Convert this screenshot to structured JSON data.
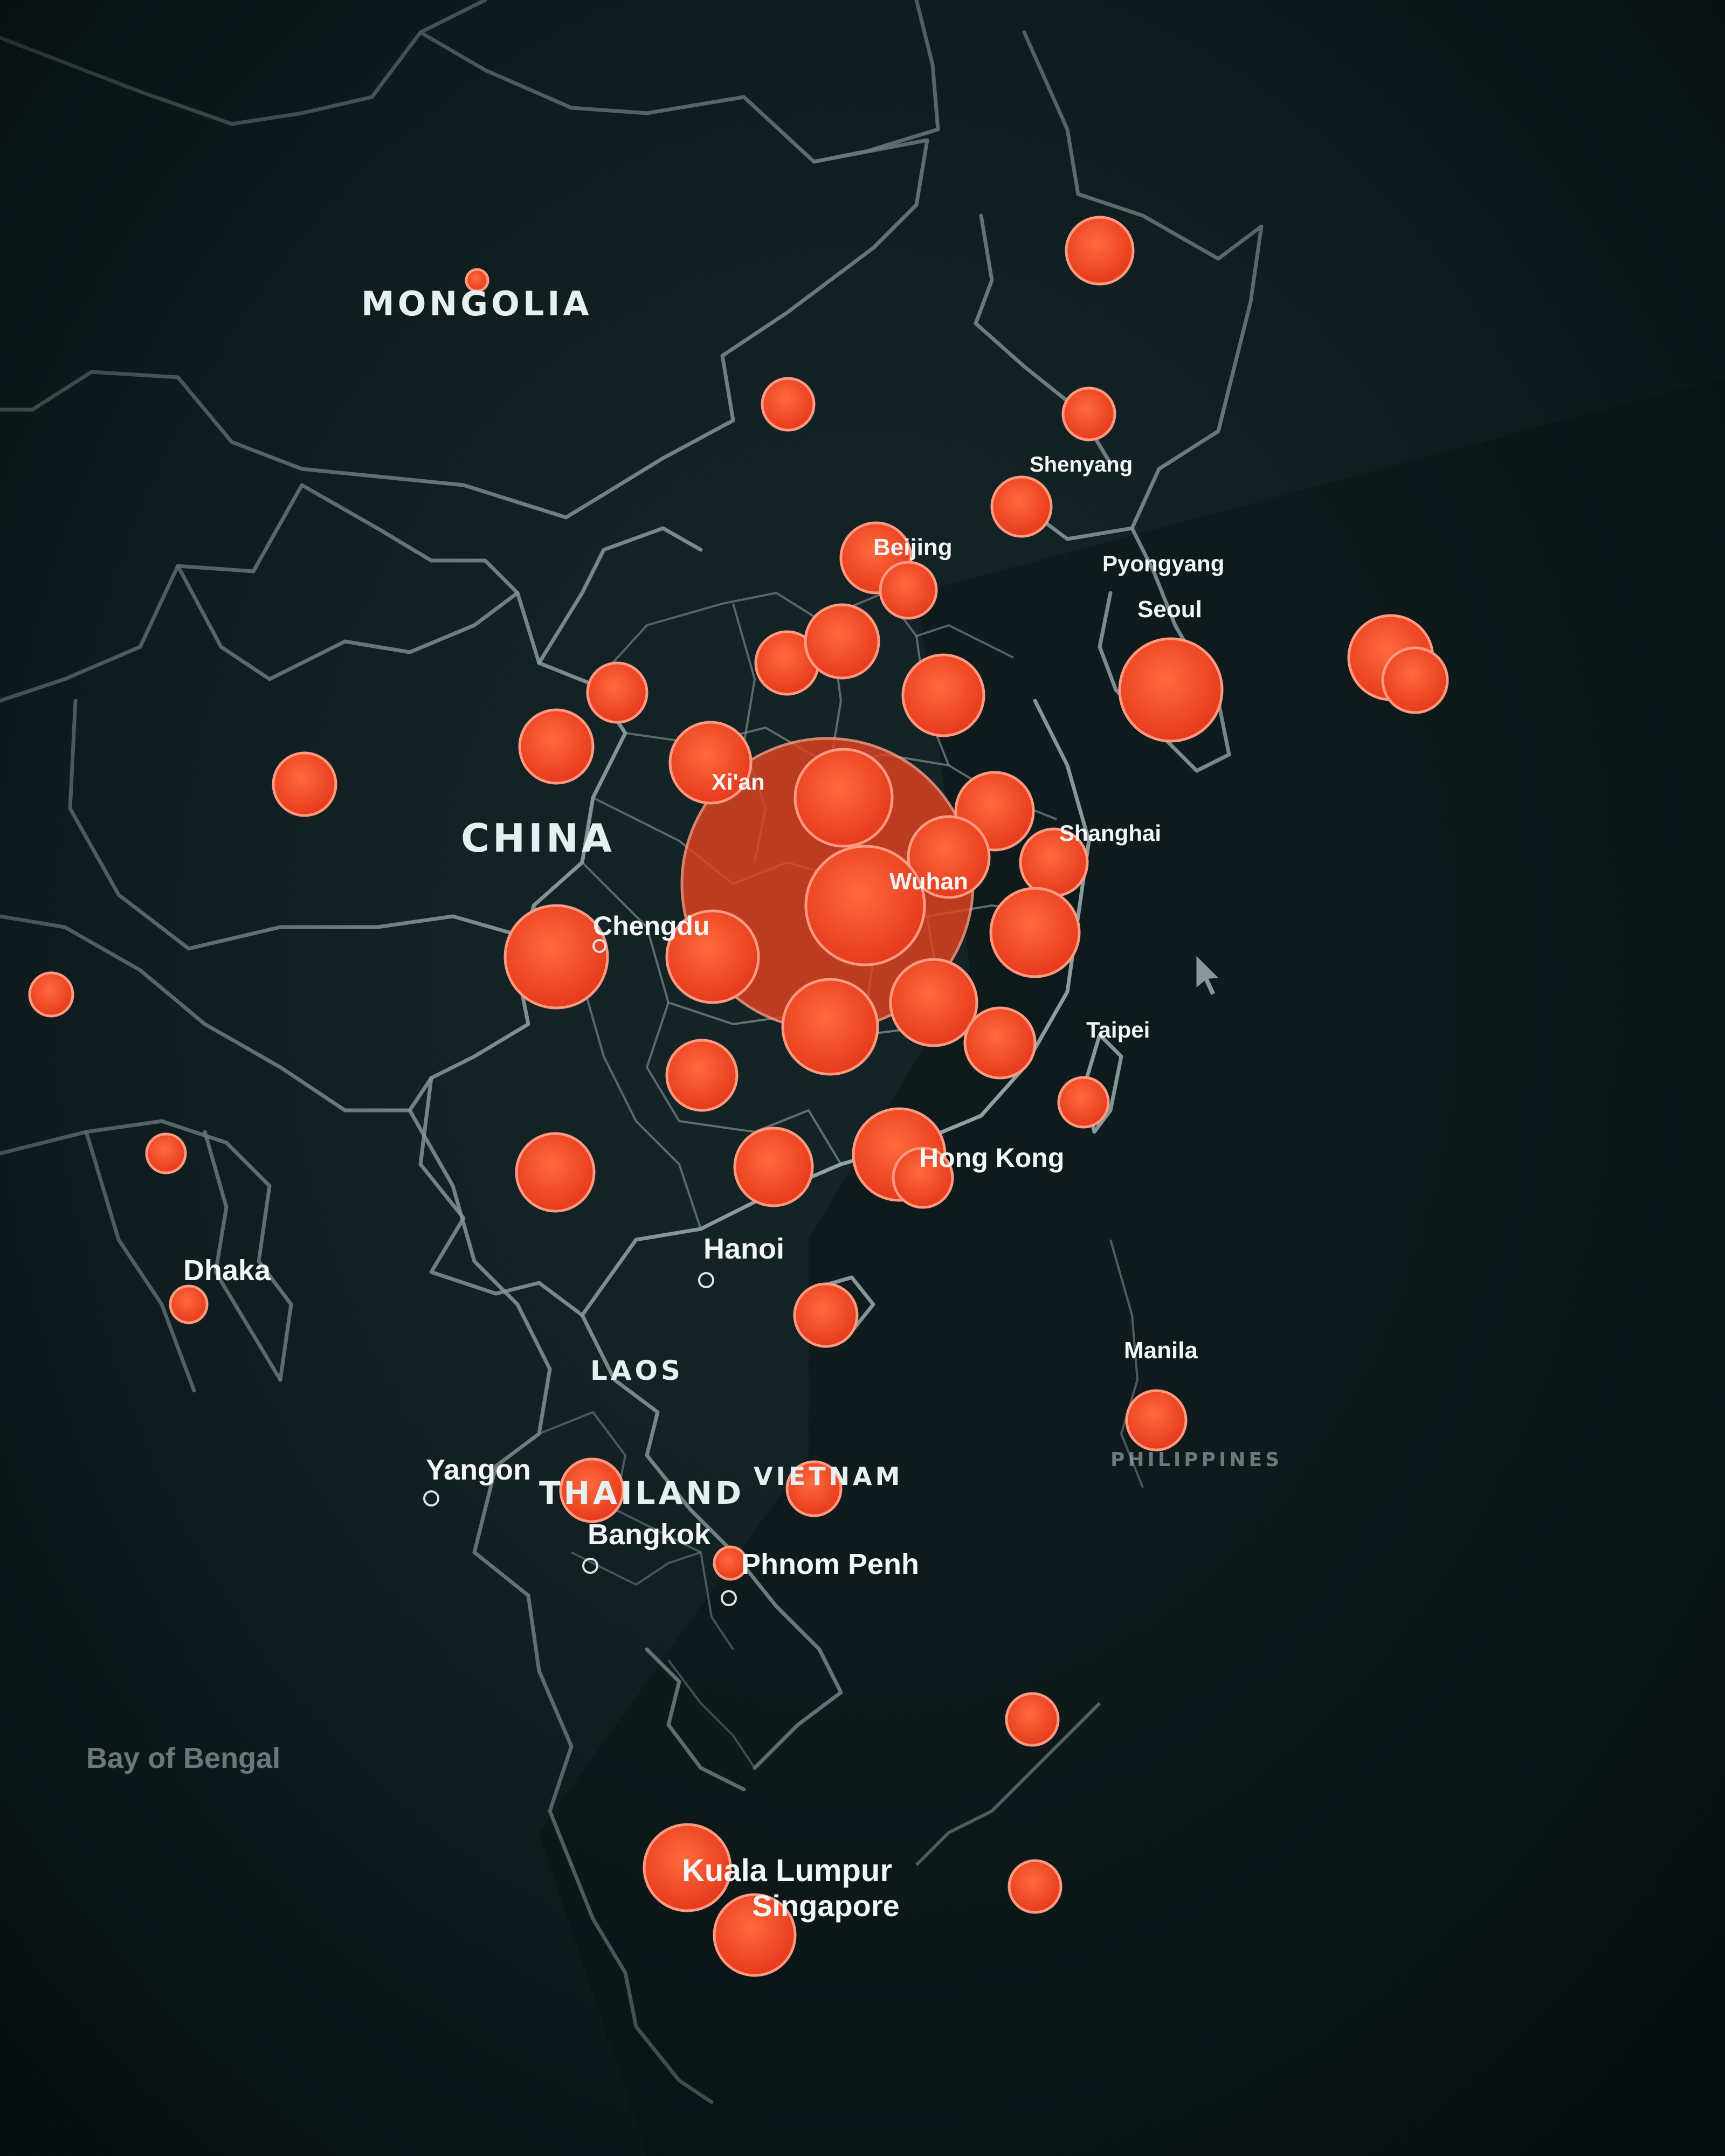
{
  "map": {
    "theme": "dark",
    "background_color": "#0f1a1c",
    "bubble_color": "#f04424",
    "countries": [
      {
        "key": "mongolia",
        "label": "MONGOLIA"
      },
      {
        "key": "china",
        "label": "CHINA"
      },
      {
        "key": "laos",
        "label": "LAOS"
      },
      {
        "key": "thailand",
        "label": "THAILAND"
      },
      {
        "key": "vietnam",
        "label": "VIETNAM"
      }
    ],
    "cities": [
      {
        "key": "beijing",
        "label": "Beijing"
      },
      {
        "key": "shenyang",
        "label": "Shenyang"
      },
      {
        "key": "pyongyang",
        "label": "Pyongyang"
      },
      {
        "key": "seoul",
        "label": "Seoul"
      },
      {
        "key": "xian",
        "label": "Xi'an"
      },
      {
        "key": "chengdu",
        "label": "Chengdu"
      },
      {
        "key": "wuhan",
        "label": "Wuhan"
      },
      {
        "key": "shanghai",
        "label": "Shanghai"
      },
      {
        "key": "taipei",
        "label": "Taipei"
      },
      {
        "key": "hong-kong",
        "label": "Hong Kong"
      },
      {
        "key": "hanoi",
        "label": "Hanoi"
      },
      {
        "key": "dhaka",
        "label": "Dhaka"
      },
      {
        "key": "manila",
        "label": "Manila"
      },
      {
        "key": "yangon",
        "label": "Yangon"
      },
      {
        "key": "bangkok",
        "label": "Bangkok"
      },
      {
        "key": "phnom-penh",
        "label": "Phnom Penh"
      },
      {
        "key": "kuala-lumpur",
        "label": "Kuala Lumpur"
      },
      {
        "key": "singapore",
        "label": "Singapore"
      }
    ],
    "faded_labels": [
      {
        "key": "philippines",
        "label": "PHILIPPINES"
      },
      {
        "key": "bay-of-bengal",
        "label": "Bay of Bengal"
      }
    ]
  }
}
